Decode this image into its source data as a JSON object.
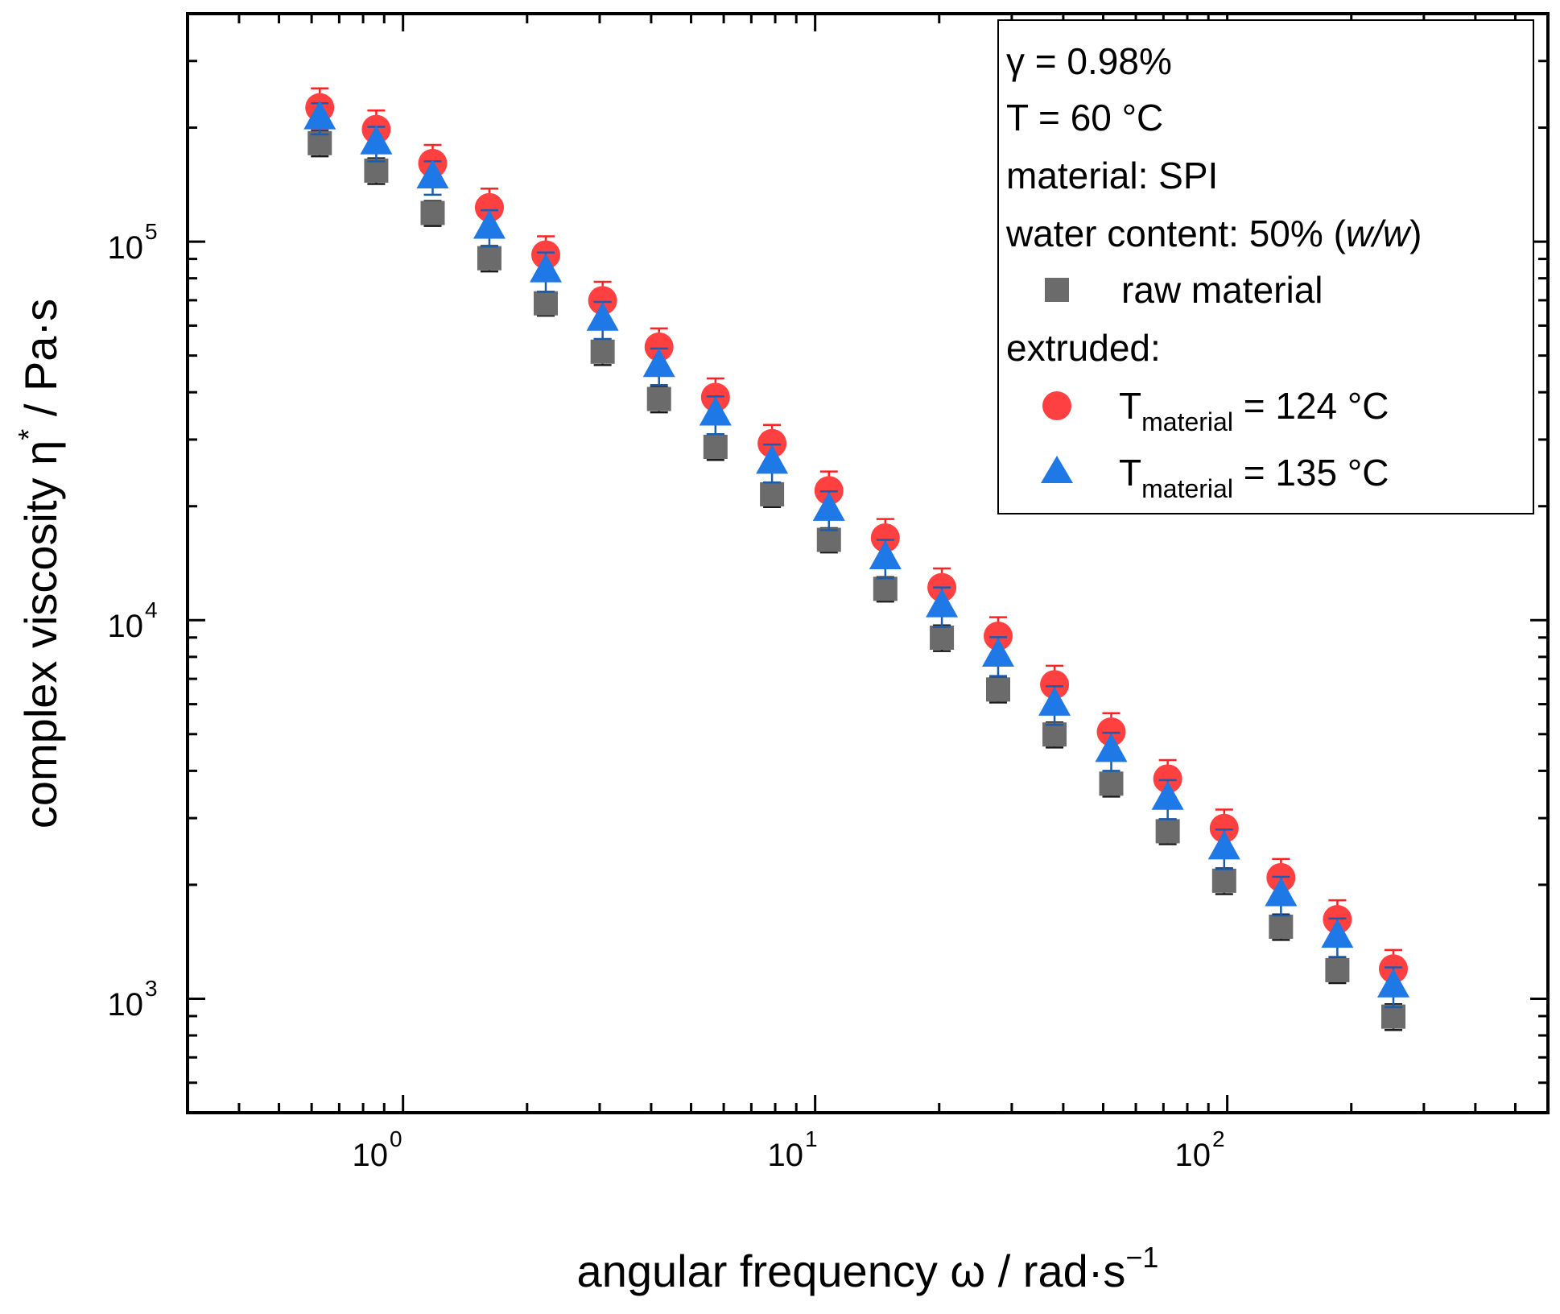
{
  "chart_data": {
    "type": "scatter",
    "x_scale": "log",
    "y_scale": "log",
    "xlim": [
      0.3,
      600
    ],
    "ylim": [
      500,
      400000
    ],
    "xlabel": "angular frequency ω / rad·s",
    "xlabel_sup": "−1",
    "ylabel_main": "complex viscosity η",
    "ylabel_sup": "*",
    "ylabel_tail": " / Pa·s",
    "x_ticks": [
      {
        "base": "10",
        "exp": "0",
        "value": 1
      },
      {
        "base": "10",
        "exp": "1",
        "value": 10
      },
      {
        "base": "10",
        "exp": "2",
        "value": 100
      }
    ],
    "y_ticks": [
      {
        "base": "10",
        "exp": "3",
        "value": 1000
      },
      {
        "base": "10",
        "exp": "4",
        "value": 10000
      },
      {
        "base": "10",
        "exp": "5",
        "value": 100000
      }
    ],
    "x": [
      0.628,
      0.861,
      1.18,
      1.62,
      2.22,
      3.05,
      4.18,
      5.73,
      7.86,
      10.8,
      14.8,
      20.3,
      27.8,
      38.1,
      52.3,
      71.7,
      98.3,
      135,
      185,
      253
    ],
    "series": [
      {
        "name": "raw material",
        "marker": "square",
        "color": "#6b6b6b",
        "errcolor": "#1a1a1a",
        "values": [
          182000,
          154000,
          119000,
          90400,
          68700,
          51200,
          38400,
          28700,
          21500,
          16300,
          12100,
          8990,
          6560,
          4990,
          3700,
          2770,
          2050,
          1550,
          1190,
          897
        ],
        "errors": [
          14000,
          12000,
          9000,
          7000,
          5000,
          4000,
          3000,
          2200,
          1600,
          1200,
          900,
          700,
          500,
          380,
          280,
          210,
          160,
          120,
          90,
          70
        ]
      },
      {
        "name": "T_material = 124 °C",
        "marker": "circle",
        "color": "#ff4040",
        "errcolor": "#ff2020",
        "values": [
          226000,
          198000,
          161000,
          123000,
          92300,
          69900,
          52700,
          38800,
          29300,
          22000,
          16500,
          12200,
          9080,
          6760,
          5070,
          3810,
          2820,
          2090,
          1620,
          1200
        ],
        "errors": [
          28000,
          24000,
          19000,
          15000,
          11000,
          8400,
          6300,
          4700,
          3500,
          2700,
          2000,
          1500,
          1100,
          820,
          610,
          460,
          340,
          250,
          200,
          145
        ]
      },
      {
        "name": "T_material = 135 °C",
        "marker": "triangle",
        "color": "#1e78e6",
        "errcolor": "#1a5cb0",
        "values": [
          212000,
          182000,
          148000,
          109000,
          83600,
          62300,
          47000,
          35000,
          26100,
          19600,
          14600,
          10900,
          8070,
          5990,
          4520,
          3380,
          2500,
          1880,
          1460,
          1080
        ],
        "errors": [
          20000,
          19000,
          15000,
          12000,
          10000,
          7000,
          5200,
          4000,
          3000,
          2300,
          1700,
          1300,
          950,
          700,
          520,
          400,
          300,
          220,
          170,
          130
        ]
      }
    ]
  },
  "legend": {
    "gamma_line": "γ = 0.98%",
    "temp_line": "T = 60 °C",
    "material_line": "material: SPI",
    "water_prefix": "water content: 50% (",
    "water_italic": "w/w",
    "water_suffix": ")",
    "raw_label": "raw material",
    "extruded_label": "extruded:",
    "t_letter": "T",
    "t_sub": "material",
    "t124_value": " = 124 °C",
    "t135_value": " = 135 °C"
  }
}
